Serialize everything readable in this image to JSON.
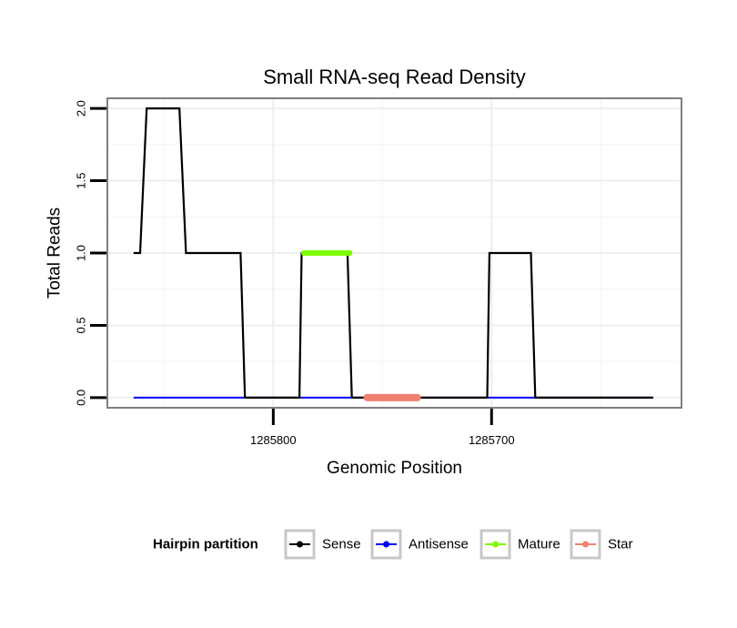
{
  "chart_data": {
    "type": "line",
    "title": "Small RNA-seq Read Density",
    "xlabel": "Genomic Position",
    "ylabel": "Total Reads",
    "x_reversed": true,
    "xlim": [
      1285876,
      1285613
    ],
    "ylim": [
      -0.07,
      2.07
    ],
    "x_ticks": [
      1285800,
      1285700
    ],
    "x_tick_labels": [
      "1285800",
      "1285700"
    ],
    "y_ticks": [
      0,
      0.5,
      1,
      1.5,
      2
    ],
    "y_tick_labels": [
      "0.0",
      "0.5",
      "1.0",
      "1.5",
      "2.0"
    ],
    "grid": true,
    "legend_position": "bottom",
    "legend_title": "Hairpin partition",
    "series": [
      {
        "name": "Sense",
        "color": "#000000",
        "x": [
          1285864,
          1285861,
          1285858,
          1285843,
          1285840,
          1285815,
          1285813,
          1285788,
          1285787,
          1285766,
          1285764,
          1285702,
          1285701,
          1285682,
          1285680,
          1285626
        ],
        "y": [
          1,
          1,
          2,
          2,
          1,
          1,
          0,
          0,
          1,
          1,
          0,
          0,
          1,
          1,
          0,
          0
        ]
      },
      {
        "name": "Antisense",
        "color": "#0000ff",
        "x": [
          1285864,
          1285626
        ],
        "y": [
          0,
          0
        ]
      },
      {
        "name": "Mature",
        "color": "#7cfc00",
        "x": [
          1285786,
          1285765
        ],
        "y": [
          1,
          1
        ]
      },
      {
        "name": "Star",
        "color": "#f08070",
        "x": [
          1285757,
          1285734
        ],
        "y": [
          0,
          0
        ]
      }
    ]
  }
}
